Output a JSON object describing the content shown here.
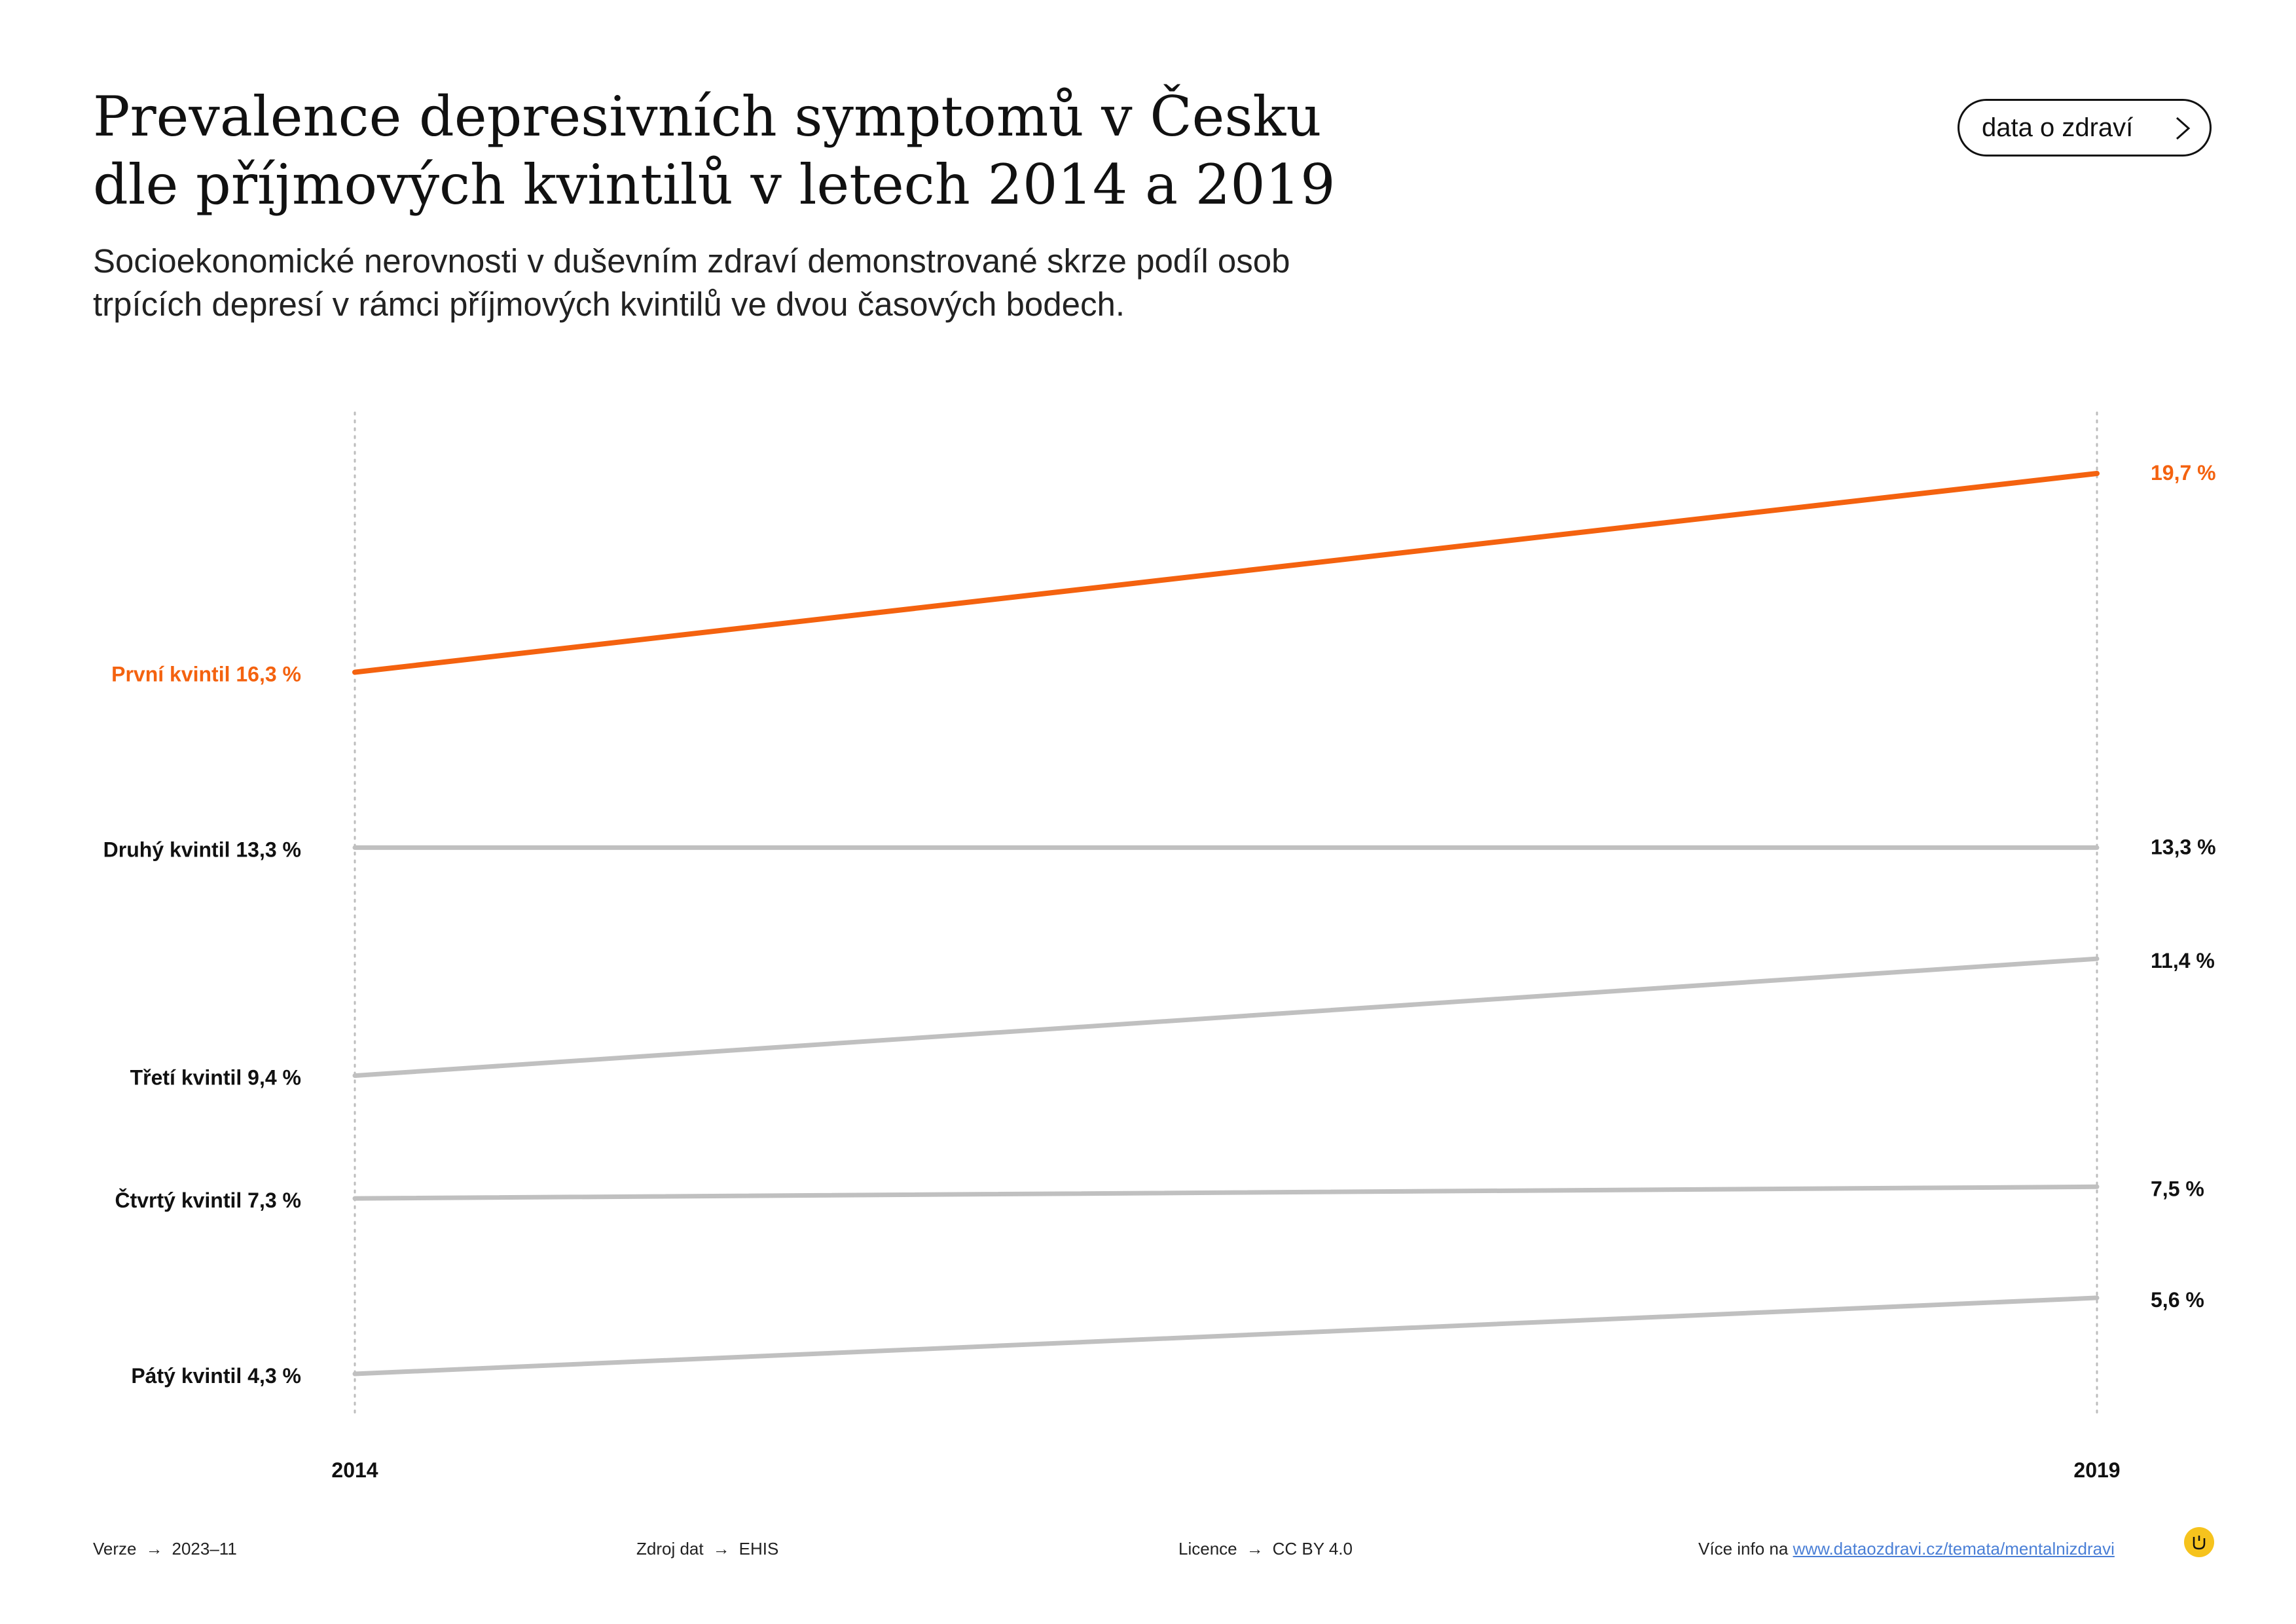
{
  "header": {
    "title_line1": "Prevalence depresivních symptomů v Česku",
    "title_line2": "dle příjmových kvintilů v letech 2014 a 2019",
    "subtitle_line1": "Socioekonomické nerovnosti v duševním zdraví demonstrované skrze podíl osob",
    "subtitle_line2": "trpících depresí v rámci příjmových kvintilů ve dvou časových bodech.",
    "brand_button_label": "data o zdraví",
    "brand_button_icon": "chevron-right-icon"
  },
  "chart_data": {
    "type": "line",
    "x": [
      "2014",
      "2019"
    ],
    "grid": false,
    "series": [
      {
        "name": "První kvintil",
        "values": [
          16.3,
          19.7
        ],
        "labels": [
          "První kvintil 16,3 %",
          "19,7 %"
        ],
        "color": "#f4620f",
        "highlight": true
      },
      {
        "name": "Druhý kvintil",
        "values": [
          13.3,
          13.3
        ],
        "labels": [
          "Druhý kvintil 13,3 %",
          "13,3 %"
        ],
        "color": "#c0c0c0",
        "highlight": false
      },
      {
        "name": "Třetí kvintil",
        "values": [
          9.4,
          11.4
        ],
        "labels": [
          "Třetí kvintil 9,4 %",
          "11,4 %"
        ],
        "color": "#c0c0c0",
        "highlight": false
      },
      {
        "name": "Čtvrtý kvintil",
        "values": [
          7.3,
          7.5
        ],
        "labels": [
          "Čtvrtý kvintil 7,3 %",
          "7,5 %"
        ],
        "color": "#c0c0c0",
        "highlight": false
      },
      {
        "name": "Pátý kvintil",
        "values": [
          4.3,
          5.6
        ],
        "labels": [
          "Pátý kvintil 4,3 %",
          "5,6 %"
        ],
        "color": "#c0c0c0",
        "highlight": false
      }
    ],
    "ylim": [
      4.3,
      19.7
    ]
  },
  "footer": {
    "version_label": "Verze",
    "version_value": "2023–11",
    "source_label": "Zdroj dat",
    "source_value": "EHIS",
    "license_label": "Licence",
    "license_value": "CC BY 4.0",
    "more_info_label": "Více info na",
    "more_info_link": "www.dataozdravi.cz/temata/mentalnizdravi",
    "arrow_glyph": "→",
    "logo_icon": "brand-logo-icon"
  },
  "colors": {
    "accent": "#f4620f",
    "muted_line": "#c0c0c0",
    "axis_dots": "#bdbdbd",
    "text": "#111111",
    "link": "#4a7fd6",
    "logo": "#f6c31d"
  }
}
